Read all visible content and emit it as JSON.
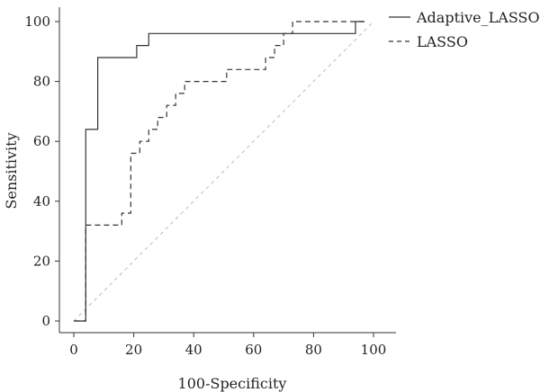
{
  "chart_data": {
    "type": "line",
    "title": "",
    "xlabel": "100-Specificity",
    "ylabel": "Sensitivity",
    "xlim": [
      0,
      100
    ],
    "ylim": [
      0,
      100
    ],
    "xticks": [
      "0",
      "20",
      "40",
      "60",
      "80",
      "100"
    ],
    "yticks": [
      "0",
      "20",
      "40",
      "60",
      "80",
      "100"
    ],
    "legend_position": "top-right",
    "grid": false,
    "series": [
      {
        "name": "Adaptive_LASSO",
        "style": "solid",
        "color": "#333333",
        "x": [
          0,
          4,
          4,
          8,
          8,
          21,
          21,
          25,
          25,
          94,
          94,
          97
        ],
        "y": [
          0,
          0,
          64,
          64,
          88,
          88,
          92,
          92,
          96,
          96,
          100,
          100
        ]
      },
      {
        "name": "LASSO",
        "style": "dashed",
        "color": "#333333",
        "x": [
          0,
          4,
          4,
          16,
          16,
          19,
          19,
          22,
          22,
          25,
          25,
          28,
          28,
          31,
          31,
          34,
          34,
          37,
          37,
          51,
          51,
          64,
          64,
          67,
          67,
          70,
          70,
          73,
          73,
          94,
          94,
          97
        ],
        "y": [
          0,
          0,
          32,
          32,
          36,
          36,
          56,
          56,
          60,
          60,
          64,
          64,
          68,
          68,
          72,
          72,
          76,
          76,
          80,
          80,
          84,
          84,
          88,
          88,
          92,
          92,
          96,
          96,
          100,
          100,
          100,
          100
        ]
      },
      {
        "name": "",
        "style": "dashed-diagonal",
        "color": "#bbbbbb",
        "x": [
          0,
          100
        ],
        "y": [
          0,
          100
        ]
      }
    ]
  }
}
